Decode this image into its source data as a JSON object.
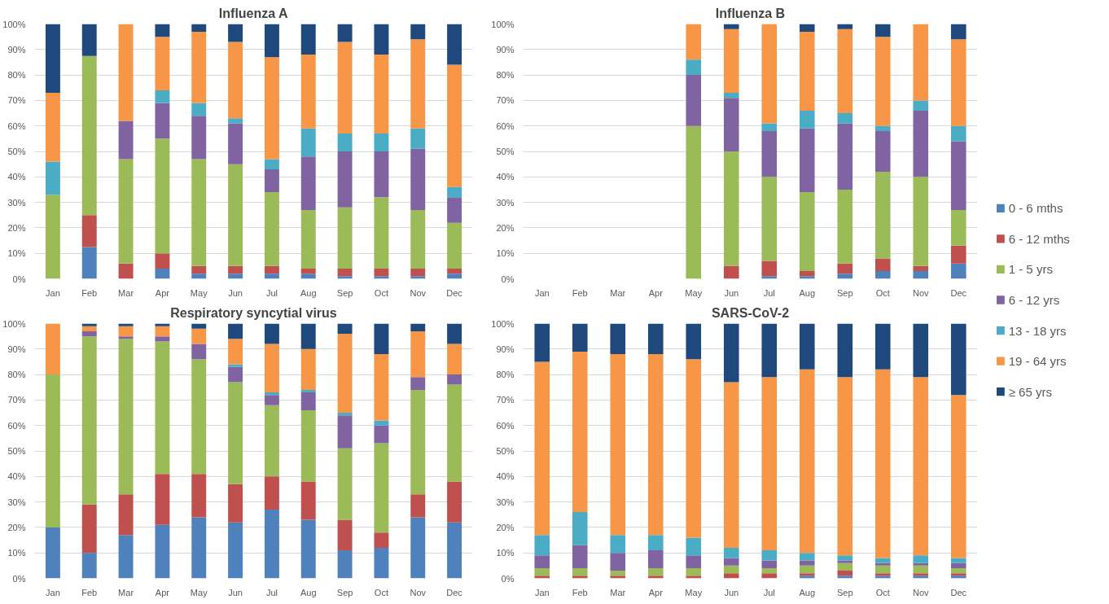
{
  "chart_data": [
    {
      "type": "bar",
      "stacked": true,
      "title": "Influenza A",
      "categories": [
        "Jan",
        "Feb",
        "Mar",
        "Apr",
        "May",
        "Jun",
        "Jul",
        "Aug",
        "Sep",
        "Oct",
        "Nov",
        "Dec"
      ],
      "ylim": [
        0,
        100
      ],
      "yticks": [
        {
          "value": 0,
          "label": "0%"
        },
        {
          "value": 10,
          "label": "10%"
        },
        {
          "value": 20,
          "label": "20%"
        },
        {
          "value": 30,
          "label": "30%"
        },
        {
          "value": 40,
          "label": "40%"
        },
        {
          "value": 50,
          "label": "50%"
        },
        {
          "value": 60,
          "label": "60%"
        },
        {
          "value": 70,
          "label": "70%"
        },
        {
          "value": 80,
          "label": "80%"
        },
        {
          "value": 90,
          "label": "90%"
        },
        {
          "value": 100,
          "label": "100%"
        }
      ],
      "grid": "y",
      "legend": "right",
      "series": [
        {
          "name": "0 - 6 mths",
          "color": "#4f81bd",
          "values": [
            0,
            12.5,
            0,
            4,
            2,
            2,
            2,
            2,
            1,
            1,
            1,
            2
          ]
        },
        {
          "name": "6 - 12 mths",
          "color": "#c0504d",
          "values": [
            0,
            12.5,
            6,
            6,
            3,
            3,
            3,
            2,
            3,
            3,
            3,
            2
          ]
        },
        {
          "name": "1 - 5 yrs",
          "color": "#9bbb59",
          "values": [
            33,
            62.5,
            41,
            45,
            42,
            40,
            29,
            23,
            24,
            28,
            23,
            18
          ]
        },
        {
          "name": "6 - 12 yrs",
          "color": "#8064a2",
          "values": [
            0,
            0,
            15,
            14,
            17,
            16,
            9,
            21,
            22,
            18,
            24,
            10
          ]
        },
        {
          "name": "13 - 18 yrs",
          "color": "#4bacc6",
          "values": [
            13,
            0,
            0,
            5,
            5,
            2,
            4,
            11,
            7,
            7,
            8,
            4
          ]
        },
        {
          "name": "19 - 64 yrs",
          "color": "#f79646",
          "values": [
            27,
            0,
            38,
            21,
            28,
            30,
            40,
            29,
            36,
            31,
            35,
            48
          ]
        },
        {
          "name": "≥ 65 yrs",
          "color": "#1f497d",
          "values": [
            27,
            12.5,
            0,
            5,
            3,
            7,
            13,
            12,
            7,
            12,
            6,
            16
          ]
        }
      ]
    },
    {
      "type": "bar",
      "stacked": true,
      "title": "Influenza B",
      "categories": [
        "Jan",
        "Feb",
        "Mar",
        "Apr",
        "May",
        "Jun",
        "Jul",
        "Aug",
        "Sep",
        "Oct",
        "Nov",
        "Dec"
      ],
      "ylim": [
        0,
        100
      ],
      "yticks": [
        {
          "value": 0,
          "label": "0%"
        },
        {
          "value": 10,
          "label": "10%"
        },
        {
          "value": 20,
          "label": "20%"
        },
        {
          "value": 30,
          "label": "30%"
        },
        {
          "value": 40,
          "label": "40%"
        },
        {
          "value": 50,
          "label": "50%"
        },
        {
          "value": 60,
          "label": "60%"
        },
        {
          "value": 70,
          "label": "70%"
        },
        {
          "value": 80,
          "label": "80%"
        },
        {
          "value": 90,
          "label": "90%"
        },
        {
          "value": 100,
          "label": "100%"
        }
      ],
      "grid": "y",
      "legend": false,
      "series": [
        {
          "color": "#4f81bd",
          "values": [
            null,
            null,
            null,
            null,
            0,
            0,
            1,
            1,
            2,
            3,
            3,
            6
          ]
        },
        {
          "color": "#c0504d",
          "values": [
            null,
            null,
            null,
            null,
            0,
            5,
            6,
            2,
            4,
            5,
            2,
            7
          ]
        },
        {
          "color": "#9bbb59",
          "values": [
            null,
            null,
            null,
            null,
            60,
            45,
            33,
            31,
            29,
            34,
            35,
            14
          ]
        },
        {
          "color": "#8064a2",
          "values": [
            null,
            null,
            null,
            null,
            20,
            21,
            18,
            25,
            26,
            16,
            26,
            27
          ]
        },
        {
          "color": "#4bacc6",
          "values": [
            null,
            null,
            null,
            null,
            6,
            2,
            3,
            7,
            4,
            2,
            4,
            6
          ]
        },
        {
          "color": "#f79646",
          "values": [
            null,
            null,
            null,
            null,
            14,
            25,
            39,
            31,
            33,
            35,
            30,
            34
          ]
        },
        {
          "color": "#1f497d",
          "values": [
            null,
            null,
            null,
            null,
            0,
            2,
            0,
            3,
            2,
            5,
            0,
            6
          ]
        }
      ]
    },
    {
      "type": "bar",
      "stacked": true,
      "title": "Respiratory syncytial virus",
      "categories": [
        "Jan",
        "Feb",
        "Mar",
        "Apr",
        "May",
        "Jun",
        "Jul",
        "Aug",
        "Sep",
        "Oct",
        "Nov",
        "Dec"
      ],
      "ylim": [
        0,
        100
      ],
      "yticks": [
        {
          "value": 0,
          "label": "0%"
        },
        {
          "value": 10,
          "label": "10%"
        },
        {
          "value": 20,
          "label": "20%"
        },
        {
          "value": 30,
          "label": "30%"
        },
        {
          "value": 40,
          "label": "40%"
        },
        {
          "value": 50,
          "label": "50%"
        },
        {
          "value": 60,
          "label": "60%"
        },
        {
          "value": 70,
          "label": "70%"
        },
        {
          "value": 80,
          "label": "80%"
        },
        {
          "value": 90,
          "label": "90%"
        },
        {
          "value": 100,
          "label": "100%"
        }
      ],
      "grid": "y",
      "legend": false,
      "series": [
        {
          "color": "#4f81bd",
          "values": [
            20,
            10,
            17,
            21,
            24,
            22,
            27,
            23,
            11,
            12,
            24,
            22
          ]
        },
        {
          "color": "#c0504d",
          "values": [
            0,
            19,
            16,
            20,
            17,
            15,
            13,
            15,
            12,
            6,
            9,
            16
          ]
        },
        {
          "color": "#9bbb59",
          "values": [
            60,
            66,
            61,
            52,
            45,
            40,
            28,
            28,
            28,
            35,
            41,
            38
          ]
        },
        {
          "color": "#8064a2",
          "values": [
            0,
            2,
            1,
            2,
            6,
            6,
            4,
            7,
            13,
            7,
            5,
            4
          ]
        },
        {
          "color": "#4bacc6",
          "values": [
            0,
            0,
            0,
            0,
            0,
            1,
            1,
            1,
            1,
            2,
            0,
            0
          ]
        },
        {
          "color": "#f79646",
          "values": [
            20,
            2,
            4,
            4,
            6,
            10,
            19,
            16,
            31,
            26,
            18,
            12
          ]
        },
        {
          "color": "#1f497d",
          "values": [
            0,
            1,
            1,
            1,
            2,
            6,
            8,
            10,
            4,
            12,
            3,
            8
          ]
        }
      ]
    },
    {
      "type": "bar",
      "stacked": true,
      "title": "SARS-CoV-2",
      "categories": [
        "Jan",
        "Feb",
        "Mar",
        "Apr",
        "May",
        "Jun",
        "Jul",
        "Aug",
        "Sep",
        "Oct",
        "Nov",
        "Dec"
      ],
      "ylim": [
        0,
        100
      ],
      "yticks": [
        {
          "value": 0,
          "label": "0%"
        },
        {
          "value": 10,
          "label": "10%"
        },
        {
          "value": 20,
          "label": "20%"
        },
        {
          "value": 30,
          "label": "30%"
        },
        {
          "value": 40,
          "label": "40%"
        },
        {
          "value": 50,
          "label": "50%"
        },
        {
          "value": 60,
          "label": "60%"
        },
        {
          "value": 70,
          "label": "70%"
        },
        {
          "value": 80,
          "label": "80%"
        },
        {
          "value": 90,
          "label": "90%"
        },
        {
          "value": 100,
          "label": "100%"
        }
      ],
      "grid": "y",
      "legend": false,
      "series": [
        {
          "color": "#4f81bd",
          "values": [
            0,
            0,
            0,
            0,
            0,
            0,
            0,
            1,
            1,
            1,
            1,
            1
          ]
        },
        {
          "color": "#c0504d",
          "values": [
            1,
            1,
            1,
            1,
            1,
            2,
            2,
            1,
            2,
            1,
            1,
            1
          ]
        },
        {
          "color": "#9bbb59",
          "values": [
            3,
            3,
            2,
            3,
            3,
            3,
            2,
            3,
            3,
            3,
            3,
            2
          ]
        },
        {
          "color": "#8064a2",
          "values": [
            5,
            9,
            7,
            7,
            5,
            3,
            3,
            2,
            1,
            1,
            1,
            2
          ]
        },
        {
          "color": "#4bacc6",
          "values": [
            8,
            13,
            7,
            6,
            7,
            4,
            4,
            3,
            2,
            2,
            3,
            2
          ]
        },
        {
          "color": "#f79646",
          "values": [
            68,
            63,
            71,
            71,
            70,
            65,
            68,
            72,
            70,
            74,
            70,
            64
          ]
        },
        {
          "color": "#1f497d",
          "values": [
            15,
            11,
            12,
            12,
            14,
            23,
            21,
            18,
            21,
            18,
            21,
            28
          ]
        }
      ]
    }
  ]
}
